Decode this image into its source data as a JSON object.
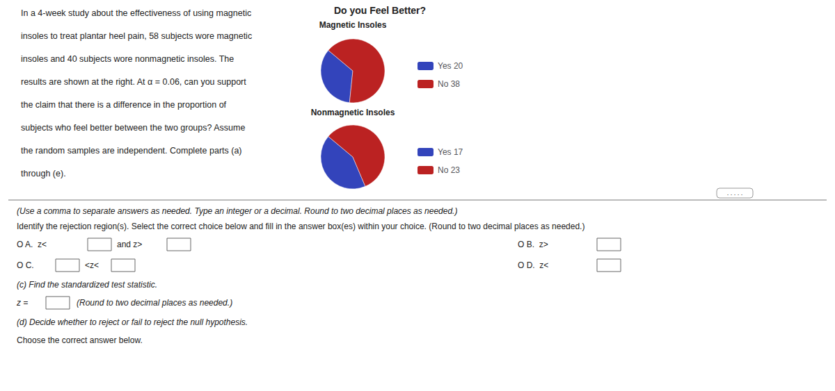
{
  "title": "Do you Feel Better?",
  "annotations": [
    "In a 4-week study about the effectiveness of using magnetic",
    "insoles to treat plantar heel pain, 58 subjects wore magnetic",
    "insoles and 40 subjects wore nonmagnetic insoles. The",
    "results are shown at the right. At α = 0.06, can you support",
    "the claim that there is a difference in the proportion of",
    "subjects who feel better between the two groups? Assume",
    "the random samples are independent. Complete parts (a)",
    "through (e).",
    "(Use a comma to separate answers as needed. Type an integer or a decimal. Round to two decimal places as needed.)",
    "Identify the rejection region(s). Select the correct choice below and fill in the answer box(es) within your choice. (Round to two decimal places as needed.)",
    "O A.  z<",
    "and z>",
    "O B.  z>",
    "O C.",
    "<z<",
    "O D.  z<",
    "(c) Find the standardized test statistic.",
    "z =",
    "(Round to two decimal places as needed.)",
    "(d) Decide whether to reject or fail to reject the null hypothesis.",
    "Choose the correct answer below.",
    ". . . . ."
  ],
  "chart_data": [
    {
      "type": "pie",
      "title": "Magnetic Insoles",
      "categories": [
        "Yes",
        "No"
      ],
      "values": [
        20,
        38
      ],
      "colors": [
        "#3344bb",
        "#bb2222"
      ],
      "legend": "right"
    },
    {
      "type": "pie",
      "title": "Nonmagnetic Insoles",
      "categories": [
        "Yes",
        "No"
      ],
      "values": [
        17,
        23
      ],
      "colors": [
        "#3344bb",
        "#bb2222"
      ],
      "legend": "right"
    }
  ]
}
